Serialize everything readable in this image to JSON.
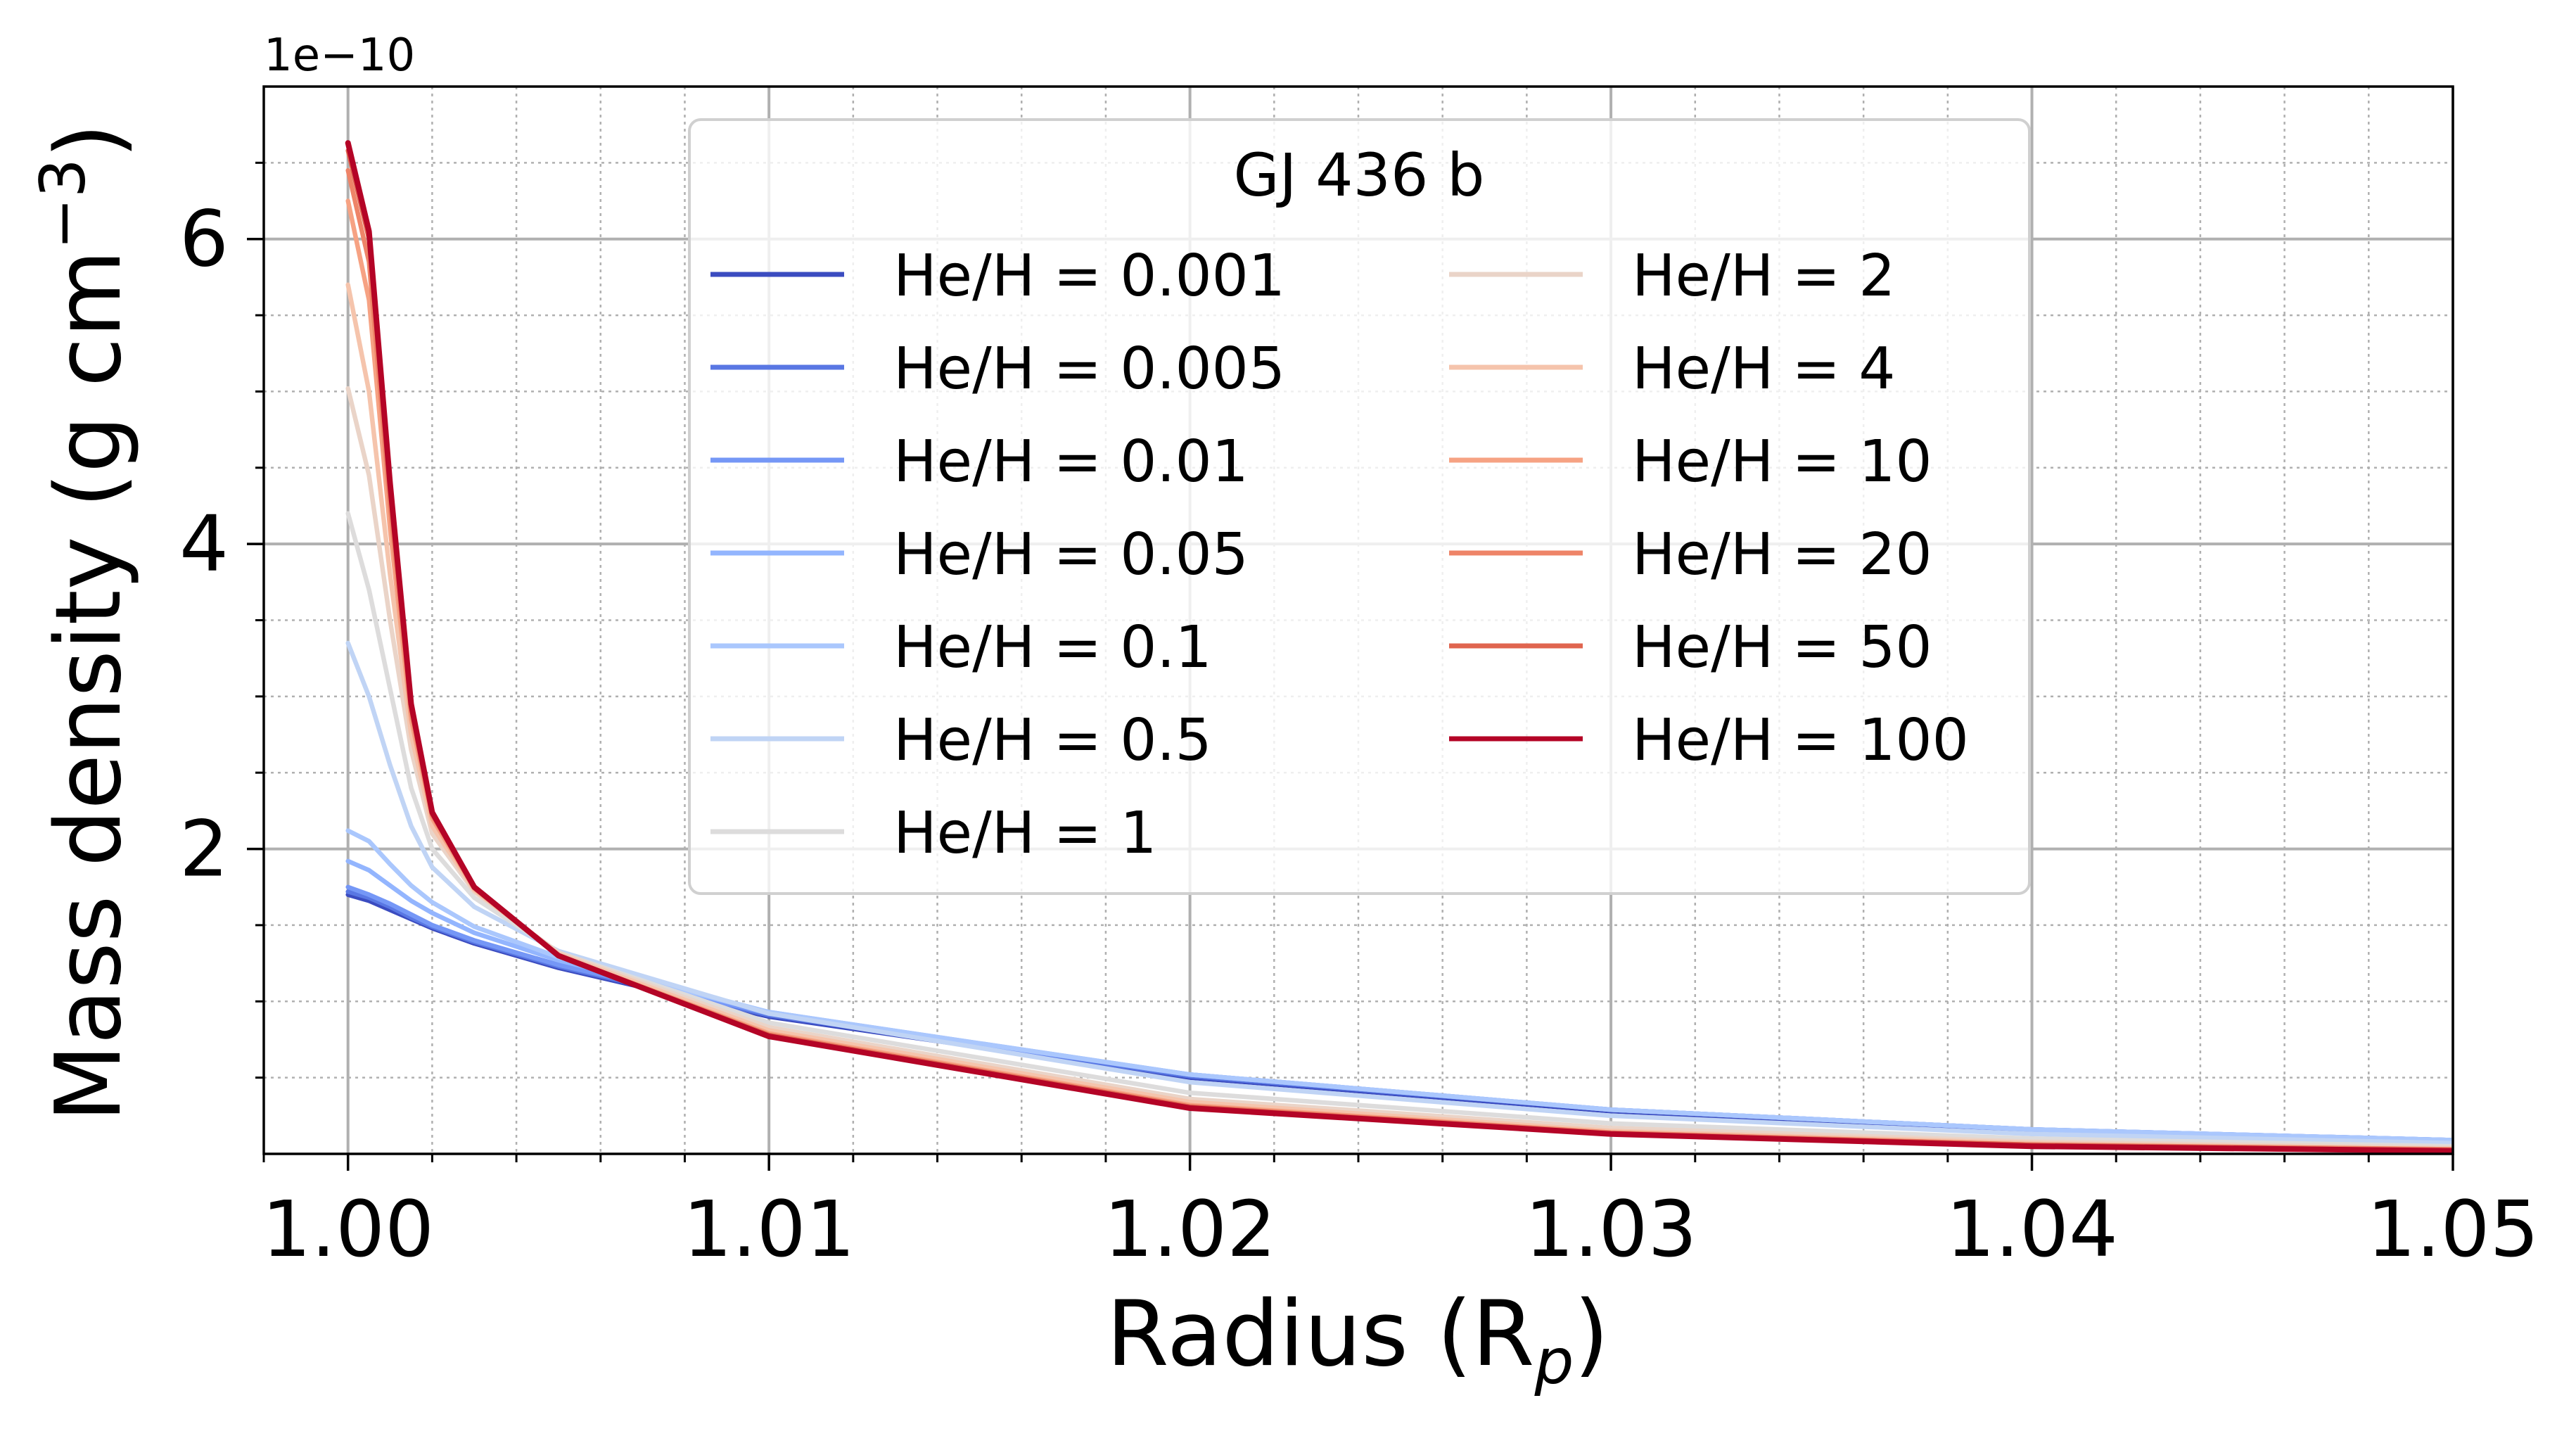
{
  "chart_data": {
    "type": "line",
    "title": "",
    "legend_title": "GJ 436 b",
    "legend_position": "upper center",
    "legend_columns": 2,
    "xlabel_main": "Radius (R",
    "xlabel_sub": "p",
    "xlabel_end": ")",
    "ylabel_main": "Mass density (g cm",
    "ylabel_sup": "−3",
    "ylabel_end": ")",
    "y_offset_text": "1e−10",
    "y_scale_factor": 1e-10,
    "xlim": [
      0.998,
      1.05
    ],
    "ylim": [
      0.0,
      7.0
    ],
    "x_ticks": [
      1.0,
      1.01,
      1.02,
      1.03,
      1.04,
      1.05
    ],
    "x_tick_labels": [
      "1.00",
      "1.01",
      "1.02",
      "1.03",
      "1.04",
      "1.05"
    ],
    "y_ticks": [
      2,
      4,
      6
    ],
    "y_tick_labels": [
      "2",
      "4",
      "6"
    ],
    "grid": true,
    "minor_grid": true,
    "x": [
      1.0,
      1.0005,
      1.001,
      1.0015,
      1.002,
      1.003,
      1.005,
      1.01,
      1.02,
      1.03,
      1.04,
      1.05
    ],
    "series": [
      {
        "name": "He/H = 0.001",
        "color": "#3b4cc0",
        "values": [
          1.7,
          1.66,
          1.6,
          1.54,
          1.48,
          1.38,
          1.22,
          0.9,
          0.5,
          0.28,
          0.15,
          0.08
        ]
      },
      {
        "name": "He/H = 0.005",
        "color": "#5977e3",
        "values": [
          1.72,
          1.68,
          1.62,
          1.55,
          1.49,
          1.39,
          1.23,
          0.91,
          0.51,
          0.29,
          0.16,
          0.09
        ]
      },
      {
        "name": "He/H = 0.01",
        "color": "#7597f6",
        "values": [
          1.75,
          1.7,
          1.64,
          1.57,
          1.5,
          1.4,
          1.24,
          0.92,
          0.52,
          0.29,
          0.16,
          0.09
        ]
      },
      {
        "name": "He/H = 0.05",
        "color": "#93b5fe",
        "values": [
          1.92,
          1.86,
          1.76,
          1.66,
          1.58,
          1.45,
          1.27,
          0.93,
          0.52,
          0.29,
          0.16,
          0.09
        ]
      },
      {
        "name": "He/H = 0.1",
        "color": "#aac7fd",
        "values": [
          2.12,
          2.05,
          1.9,
          1.76,
          1.65,
          1.49,
          1.29,
          0.93,
          0.52,
          0.29,
          0.16,
          0.09
        ]
      },
      {
        "name": "He/H = 0.5",
        "color": "#c0d4f5",
        "values": [
          3.35,
          3.0,
          2.55,
          2.15,
          1.88,
          1.62,
          1.33,
          0.92,
          0.47,
          0.25,
          0.13,
          0.07
        ]
      },
      {
        "name": "He/H = 1",
        "color": "#dddcdc",
        "values": [
          4.2,
          3.7,
          3.05,
          2.4,
          2.0,
          1.68,
          1.32,
          0.86,
          0.4,
          0.2,
          0.1,
          0.05
        ]
      },
      {
        "name": "He/H = 2",
        "color": "#ead4c8",
        "values": [
          5.02,
          4.45,
          3.5,
          2.65,
          2.1,
          1.72,
          1.32,
          0.83,
          0.36,
          0.17,
          0.08,
          0.04
        ]
      },
      {
        "name": "He/H = 4",
        "color": "#f5c4ac",
        "values": [
          5.7,
          5.0,
          3.8,
          2.75,
          2.15,
          1.73,
          1.31,
          0.81,
          0.34,
          0.15,
          0.07,
          0.03
        ]
      },
      {
        "name": "He/H = 10",
        "color": "#f6a283",
        "values": [
          6.25,
          5.6,
          4.1,
          2.85,
          2.2,
          1.74,
          1.3,
          0.79,
          0.32,
          0.14,
          0.06,
          0.03
        ]
      },
      {
        "name": "He/H = 20",
        "color": "#ee8468",
        "values": [
          6.45,
          5.85,
          4.25,
          2.9,
          2.22,
          1.75,
          1.3,
          0.78,
          0.31,
          0.14,
          0.06,
          0.03
        ]
      },
      {
        "name": "He/H = 50",
        "color": "#e0654f",
        "values": [
          6.58,
          6.0,
          4.35,
          2.93,
          2.23,
          1.75,
          1.3,
          0.78,
          0.31,
          0.13,
          0.06,
          0.02
        ]
      },
      {
        "name": "He/H = 100",
        "color": "#b40426",
        "values": [
          6.63,
          6.05,
          4.4,
          2.95,
          2.24,
          1.75,
          1.3,
          0.77,
          0.3,
          0.13,
          0.05,
          0.02
        ]
      }
    ]
  }
}
